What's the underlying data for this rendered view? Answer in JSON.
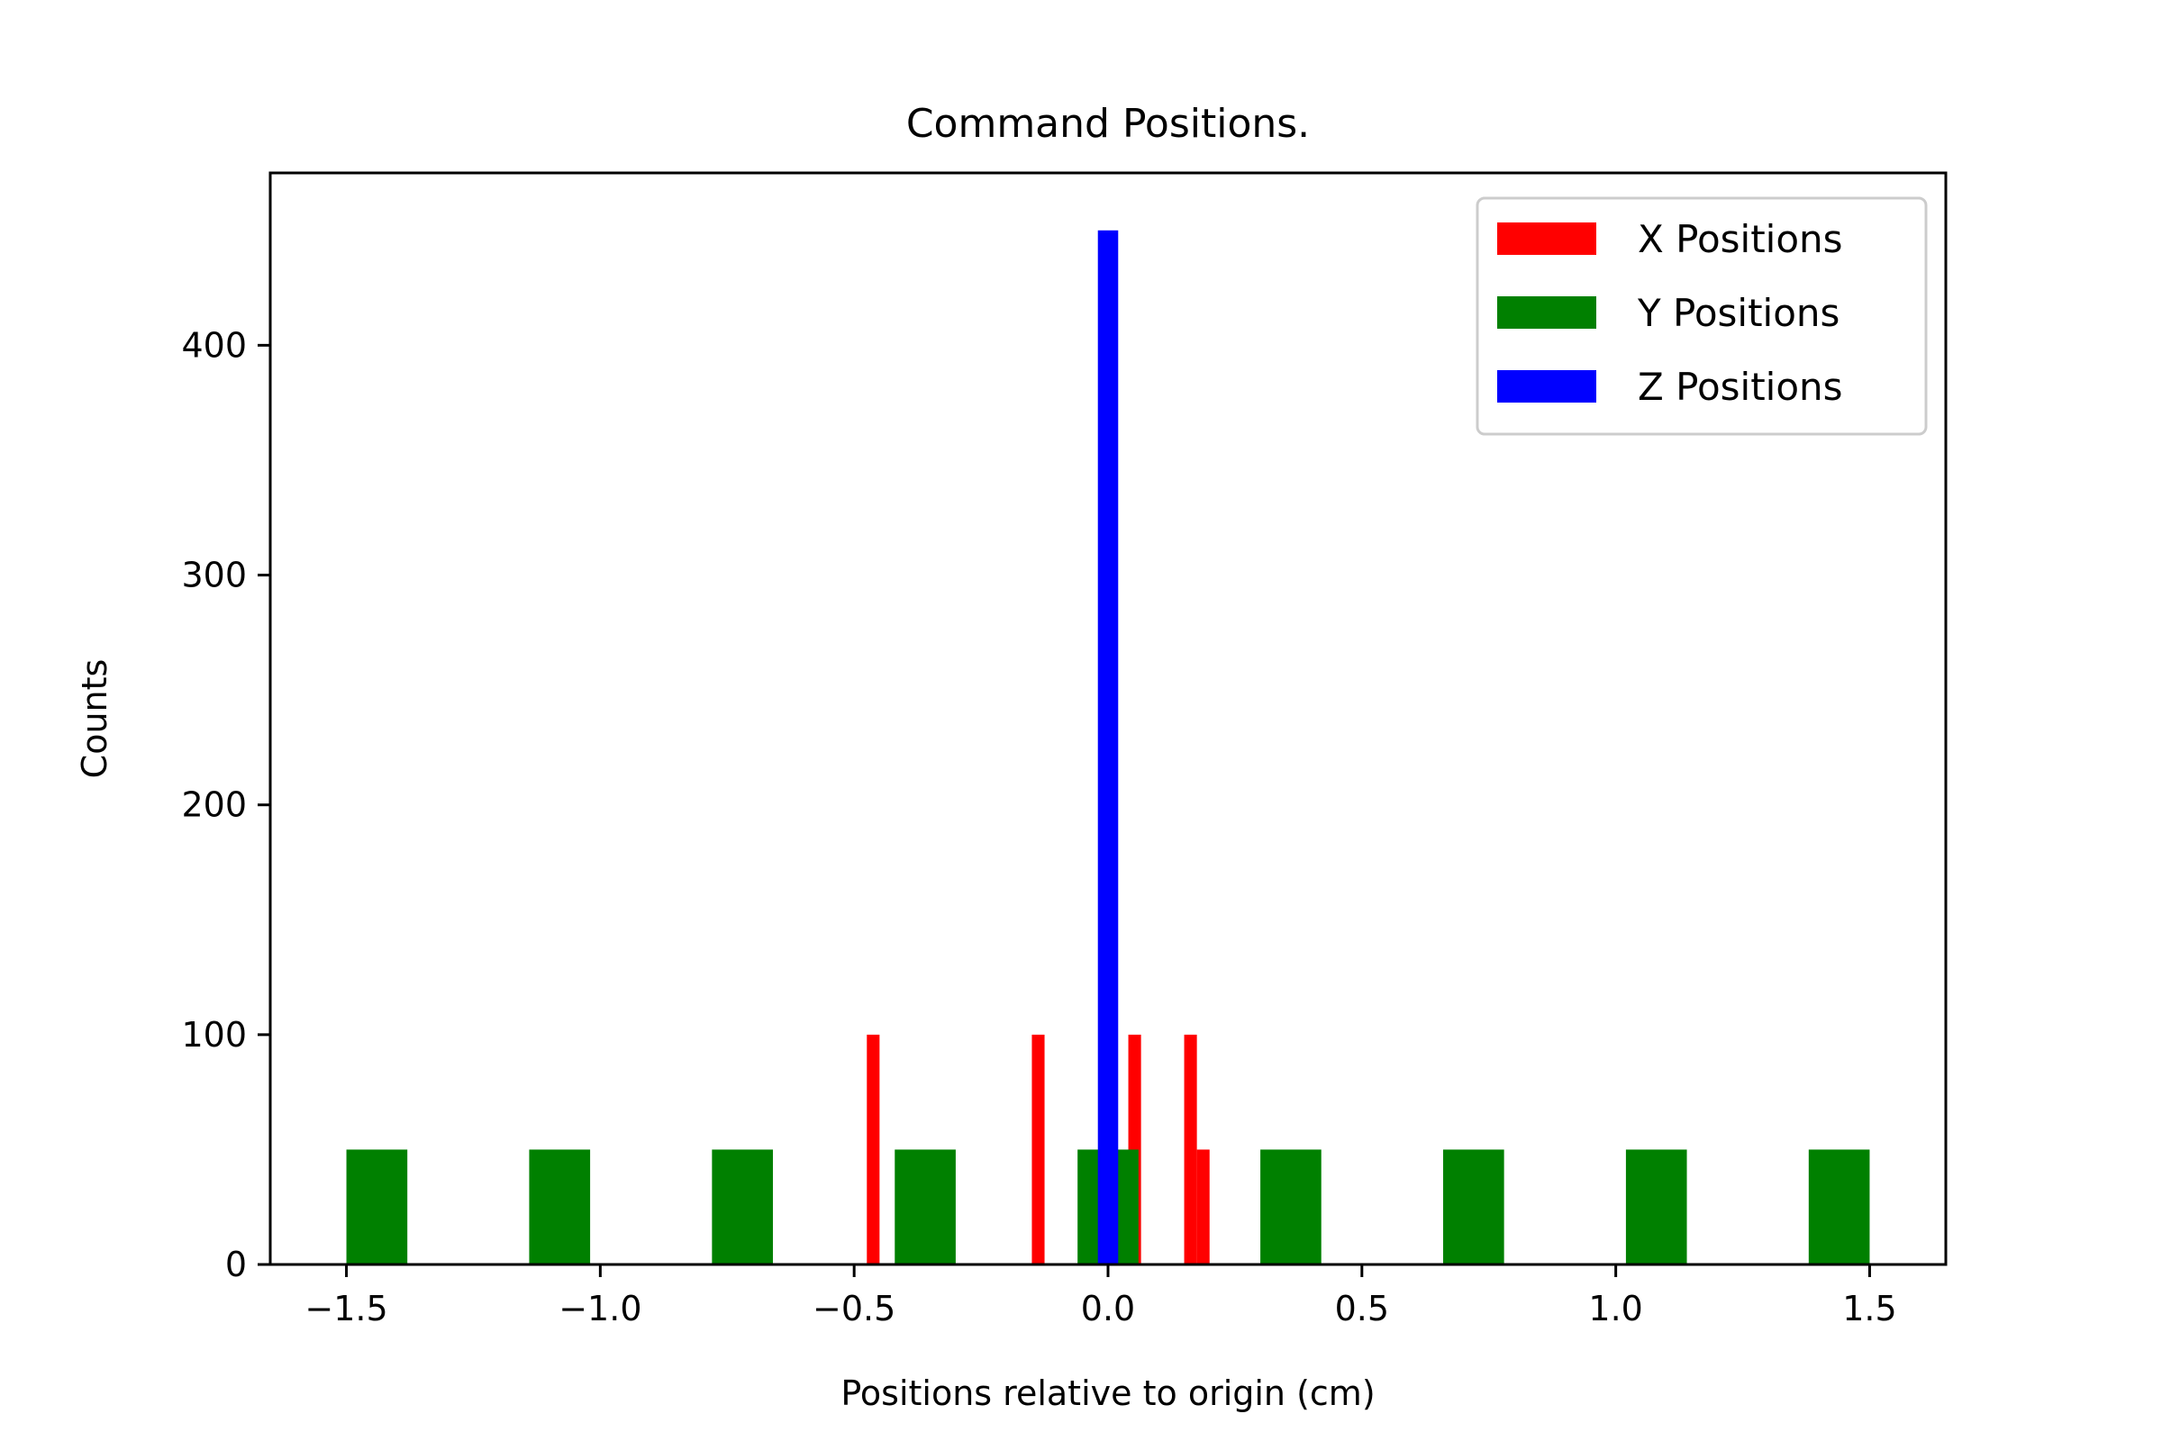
{
  "chart_data": {
    "type": "bar",
    "title": "Command Positions.",
    "xlabel": "Positions relative to origin (cm)",
    "ylabel": "Counts",
    "xlim": [
      -1.65,
      1.65
    ],
    "ylim": [
      0,
      475
    ],
    "xticks": [
      -1.5,
      -1.0,
      -0.5,
      0.0,
      0.5,
      1.0,
      1.5
    ],
    "xtick_labels": [
      "−1.5",
      "−1.0",
      "−0.5",
      "0.0",
      "0.5",
      "1.0",
      "1.5"
    ],
    "yticks": [
      0,
      100,
      200,
      300,
      400
    ],
    "ytick_labels": [
      "0",
      "100",
      "200",
      "300",
      "400"
    ],
    "grid": false,
    "legend_position": "top-right",
    "series": [
      {
        "name": "X Positions",
        "color": "#ff0000",
        "bins": [
          {
            "x0": -0.475,
            "x1": -0.45,
            "count": 100
          },
          {
            "x0": -0.15,
            "x1": -0.125,
            "count": 100
          },
          {
            "x0": 0.04,
            "x1": 0.065,
            "count": 100
          },
          {
            "x0": 0.15,
            "x1": 0.175,
            "count": 100
          },
          {
            "x0": 0.175,
            "x1": 0.2,
            "count": 50
          }
        ]
      },
      {
        "name": "Y Positions",
        "color": "#008000",
        "bins": [
          {
            "x0": -1.5,
            "x1": -1.38,
            "count": 50
          },
          {
            "x0": -1.14,
            "x1": -1.02,
            "count": 50
          },
          {
            "x0": -0.78,
            "x1": -0.66,
            "count": 50
          },
          {
            "x0": -0.42,
            "x1": -0.3,
            "count": 50
          },
          {
            "x0": -0.06,
            "x1": 0.06,
            "count": 50
          },
          {
            "x0": 0.3,
            "x1": 0.42,
            "count": 50
          },
          {
            "x0": 0.66,
            "x1": 0.78,
            "count": 50
          },
          {
            "x0": 1.02,
            "x1": 1.14,
            "count": 50
          },
          {
            "x0": 1.38,
            "x1": 1.5,
            "count": 50
          }
        ]
      },
      {
        "name": "Z Positions",
        "color": "#0000ff",
        "bins": [
          {
            "x0": -0.02,
            "x1": 0.02,
            "count": 450
          }
        ]
      }
    ]
  }
}
